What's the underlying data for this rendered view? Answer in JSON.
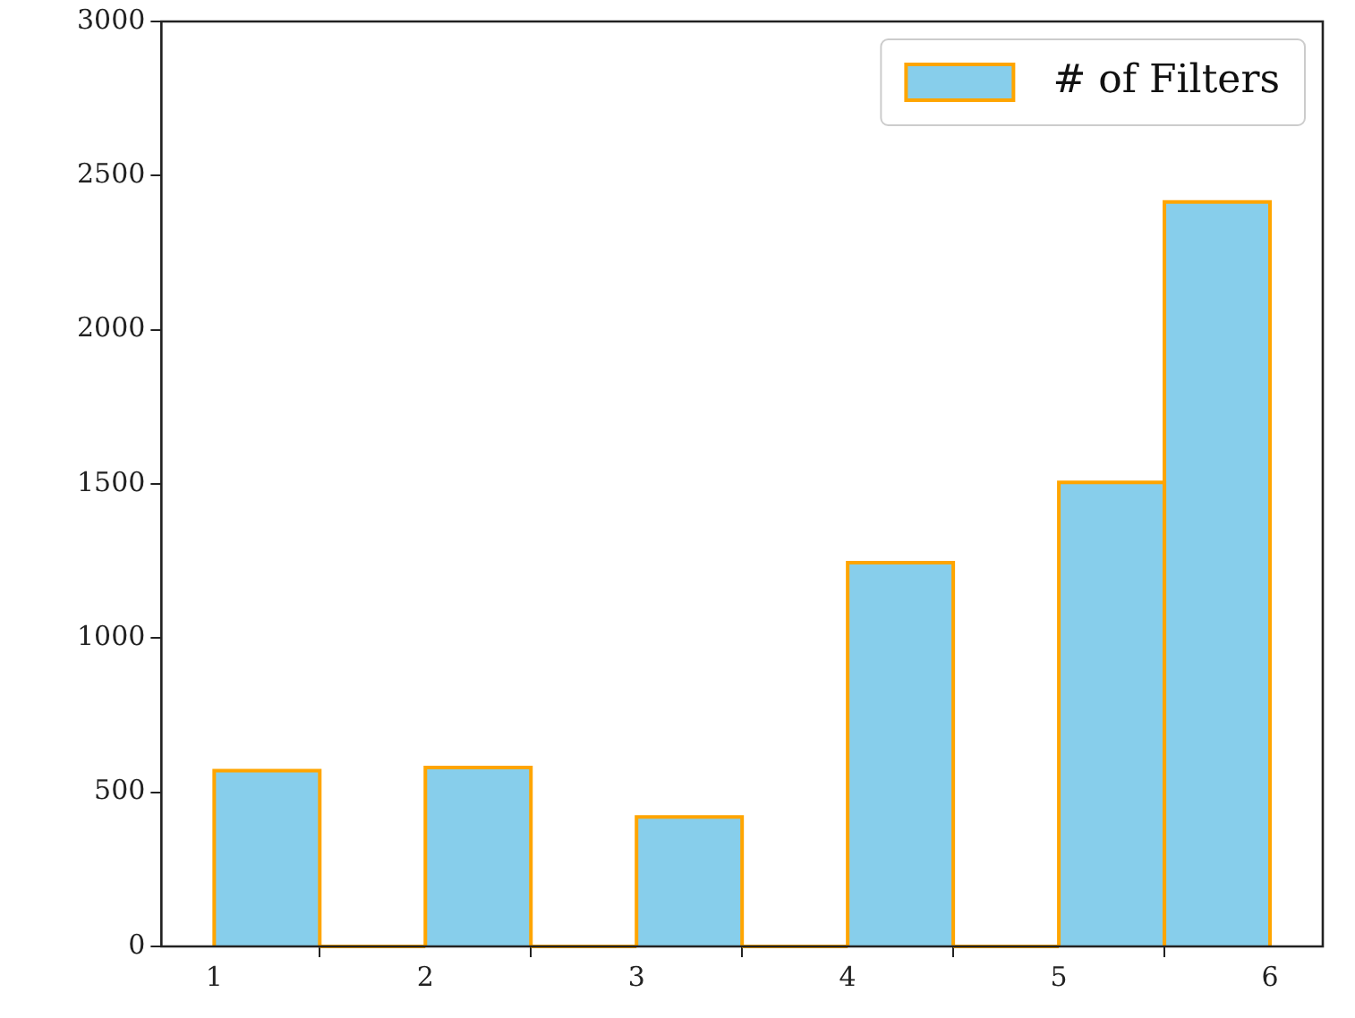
{
  "chart_data": {
    "type": "histogram",
    "bins": [
      1,
      1.5,
      2,
      2.5,
      3,
      3.5,
      4,
      4.5,
      5,
      5.5,
      6
    ],
    "series": [
      {
        "name": "# of Filters",
        "color": "#87ceeb",
        "values": [
          570,
          0,
          580,
          0,
          420,
          0,
          1245,
          0,
          1505,
          2415
        ]
      }
    ],
    "xlim": [
      0.75,
      6.25
    ],
    "xticks": [
      1,
      2,
      3,
      4,
      5,
      6
    ],
    "ylim": [
      0,
      3000
    ],
    "yticks": [
      0,
      500,
      1000,
      1500,
      2000,
      2500,
      3000
    ],
    "grid": false,
    "legend": "top right"
  }
}
